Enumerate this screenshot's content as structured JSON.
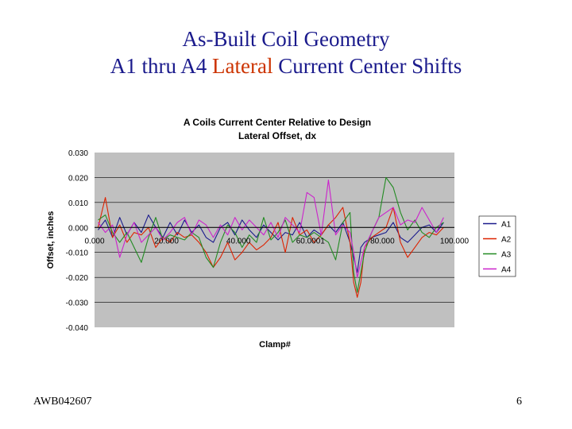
{
  "slide": {
    "title_line1": "As-Built Coil Geometry",
    "title_line2_a": "A1 thru A4 ",
    "title_line2_accent": "Lateral",
    "title_line2_b": " Current Center Shifts",
    "footer_left": "AWB042607",
    "footer_right": "6"
  },
  "chart_data": {
    "type": "line",
    "title": "A Coils Current Center Relative to Design",
    "subtitle": "Lateral Offset, dx",
    "xlabel": "Clamp#",
    "ylabel": "Offset, inches",
    "xlim": [
      0,
      100
    ],
    "ylim": [
      -0.04,
      0.03
    ],
    "x_tick_labels": [
      "0.000",
      "20.000",
      "40.000",
      "60.0001",
      "80.000",
      "100.000"
    ],
    "y_tick_labels": [
      "0.030",
      "0.020",
      "0.010",
      "0.000",
      "-0.010",
      "-0.020",
      "-0.030",
      "-0.040"
    ],
    "y_ticks": [
      0.03,
      0.02,
      0.01,
      0.0,
      -0.01,
      -0.02,
      -0.03,
      -0.04
    ],
    "x_ticks": [
      0,
      20,
      40,
      60,
      80,
      100
    ],
    "grid": true,
    "legend_position": "right",
    "plot_background": "#c0c0c0",
    "x": [
      1,
      3,
      5,
      7,
      9,
      11,
      13,
      15,
      17,
      19,
      21,
      23,
      25,
      27,
      29,
      31,
      33,
      35,
      37,
      39,
      41,
      43,
      45,
      47,
      49,
      51,
      53,
      55,
      57,
      59,
      61,
      63,
      65,
      67,
      69,
      71,
      72,
      73,
      74,
      75,
      77,
      79,
      81,
      83,
      85,
      87,
      89,
      91,
      93,
      95,
      97
    ],
    "series": [
      {
        "name": "A1",
        "color": "#1a1a8c",
        "values": [
          -0.001,
          0.003,
          -0.004,
          0.004,
          -0.003,
          0.002,
          -0.002,
          0.005,
          0.0,
          -0.004,
          0.002,
          -0.003,
          0.003,
          -0.002,
          0.001,
          -0.004,
          -0.006,
          0.0,
          0.002,
          -0.003,
          0.003,
          -0.001,
          -0.004,
          0.001,
          -0.002,
          -0.005,
          -0.002,
          -0.003,
          0.002,
          -0.004,
          -0.001,
          -0.003,
          0.001,
          -0.002,
          0.002,
          -0.006,
          -0.012,
          -0.018,
          -0.008,
          -0.006,
          -0.004,
          -0.003,
          -0.002,
          0.002,
          -0.004,
          -0.006,
          -0.003,
          0.0,
          0.001,
          -0.002,
          0.002
        ]
      },
      {
        "name": "A2",
        "color": "#dd2200",
        "values": [
          0.0,
          0.012,
          -0.004,
          0.001,
          -0.006,
          -0.002,
          -0.003,
          0.0,
          -0.008,
          -0.004,
          -0.006,
          -0.002,
          -0.004,
          -0.003,
          -0.006,
          -0.01,
          -0.016,
          -0.012,
          -0.006,
          -0.013,
          -0.01,
          -0.006,
          -0.009,
          -0.007,
          -0.004,
          0.002,
          -0.01,
          0.004,
          -0.003,
          -0.001,
          -0.006,
          -0.003,
          0.001,
          0.004,
          0.008,
          -0.006,
          -0.022,
          -0.028,
          -0.022,
          -0.008,
          -0.004,
          -0.002,
          0.0,
          0.008,
          -0.006,
          -0.012,
          -0.008,
          -0.004,
          -0.002,
          -0.003,
          0.0
        ]
      },
      {
        "name": "A3",
        "color": "#228b22",
        "values": [
          0.003,
          0.005,
          -0.002,
          -0.006,
          -0.002,
          -0.008,
          -0.014,
          -0.004,
          0.004,
          -0.005,
          -0.003,
          -0.004,
          -0.005,
          -0.002,
          -0.004,
          -0.012,
          -0.016,
          -0.006,
          0.001,
          -0.002,
          -0.008,
          -0.003,
          -0.006,
          0.004,
          -0.005,
          -0.002,
          0.003,
          -0.006,
          -0.003,
          -0.004,
          -0.002,
          -0.004,
          -0.006,
          -0.013,
          0.002,
          0.006,
          -0.018,
          -0.026,
          -0.018,
          -0.01,
          -0.002,
          0.004,
          0.02,
          0.016,
          0.006,
          -0.001,
          0.003,
          -0.002,
          -0.004,
          0.0,
          0.002
        ]
      },
      {
        "name": "A4",
        "color": "#cc22cc",
        "values": [
          0.002,
          -0.002,
          0.001,
          -0.012,
          -0.003,
          0.002,
          -0.006,
          -0.003,
          0.0,
          -0.005,
          -0.002,
          0.002,
          0.004,
          -0.003,
          0.003,
          0.001,
          -0.004,
          0.001,
          -0.003,
          0.004,
          -0.001,
          0.003,
          0.0,
          -0.003,
          0.002,
          -0.004,
          0.004,
          0.001,
          -0.002,
          0.014,
          0.012,
          -0.003,
          0.019,
          -0.003,
          0.001,
          -0.002,
          -0.01,
          -0.02,
          -0.014,
          -0.008,
          -0.002,
          0.004,
          0.006,
          0.008,
          0.001,
          0.003,
          0.002,
          0.008,
          0.003,
          -0.002,
          0.004
        ]
      }
    ]
  }
}
